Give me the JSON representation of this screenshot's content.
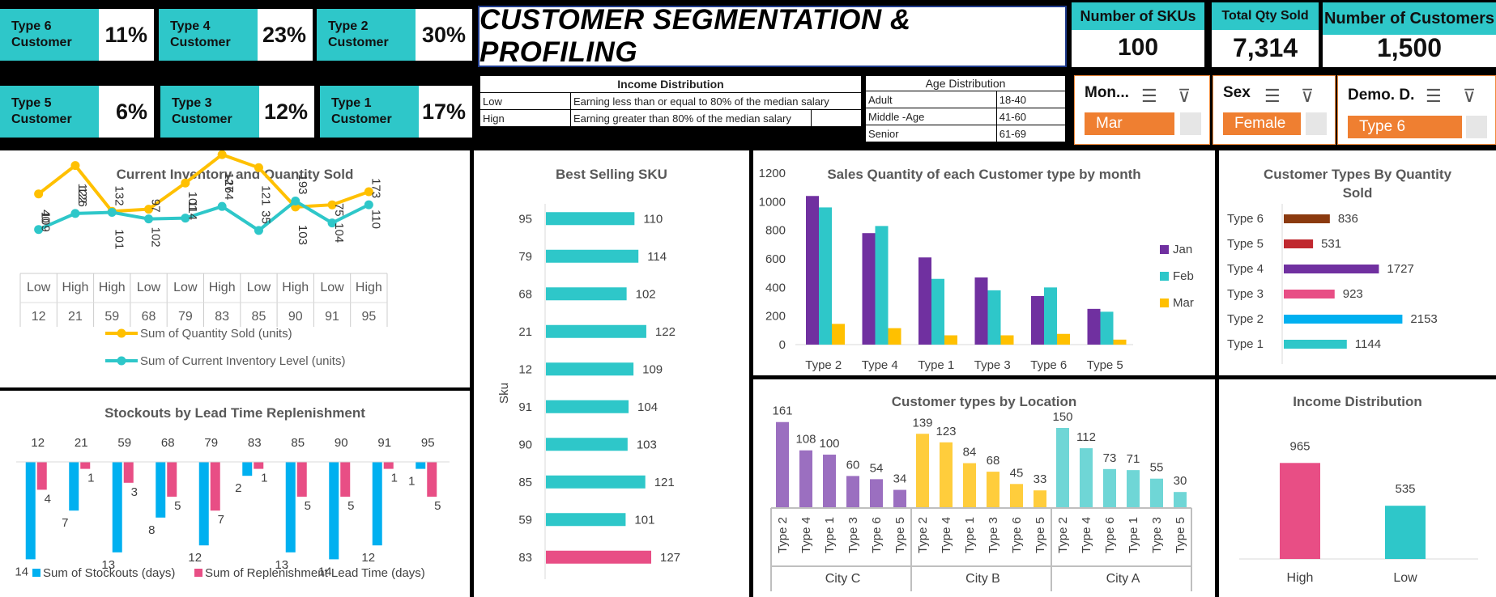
{
  "type_tiles": [
    {
      "label": "Type 6 Customer",
      "pct": "11%"
    },
    {
      "label": "Type 4 Customer",
      "pct": "23%"
    },
    {
      "label": "Type 2 Customer",
      "pct": "30%"
    },
    {
      "label": "Type 5 Customer",
      "pct": "6%"
    },
    {
      "label": "Type 3 Customer",
      "pct": "12%"
    },
    {
      "label": "Type 1 Customer",
      "pct": "17%"
    }
  ],
  "title": "CUSTOMER SEGMENTATION & PROFILING",
  "stats": {
    "skus": {
      "label": "Number of  SKUs",
      "value": "100"
    },
    "qty": {
      "label": "Total Qty  Sold",
      "value": "7,314"
    },
    "customers": {
      "label": "Number of Customers",
      "value": "1,500"
    }
  },
  "income_table": {
    "header": "Income Distribution",
    "rows": [
      {
        "level": "Low",
        "desc": "Earning less than or equal to 80% of the median salary"
      },
      {
        "level": "Hign",
        "desc": "Earning greater than 80% of the median salary"
      }
    ]
  },
  "age_table": {
    "header": "Age Distribution",
    "rows": [
      {
        "group": "Adult",
        "range": "18-40"
      },
      {
        "group": "Middle -Age",
        "range": "41-60"
      },
      {
        "group": "Senior",
        "range": "61-69"
      }
    ]
  },
  "slicers": {
    "month": {
      "title": "Mon...",
      "selected": "Mar"
    },
    "sex": {
      "title": "Sex",
      "selected": "Female"
    },
    "demo": {
      "title": "Demo. D.",
      "selected": "Type 6"
    }
  },
  "colors": {
    "teal": "#2ec7c9",
    "gold": "#ffc000",
    "pink": "#e84e85",
    "blue": "#00b0f0",
    "purple": "#7030a0",
    "orange": "#ef7f31"
  },
  "chart_data": [
    {
      "id": "inventory",
      "type": "line",
      "title": "Current Inventory and Quantity Sold",
      "categories": [
        {
          "income": "Low",
          "sku": "12"
        },
        {
          "income": "High",
          "sku": "21"
        },
        {
          "income": "High",
          "sku": "59"
        },
        {
          "income": "Low",
          "sku": "68"
        },
        {
          "income": "Low",
          "sku": "79"
        },
        {
          "income": "High",
          "sku": "83"
        },
        {
          "income": "Low",
          "sku": "85"
        },
        {
          "income": "High",
          "sku": "90"
        },
        {
          "income": "Low",
          "sku": "91"
        },
        {
          "income": "High",
          "sku": "95"
        }
      ],
      "series": [
        {
          "name": "Sum of Quantity Sold (units)",
          "values": [
            109,
            122,
            101,
            102,
            114,
            127,
            121,
            103,
            104,
            110
          ],
          "color": "#ffc000"
        },
        {
          "name": "Sum of Current Inventory Level (units)",
          "values": [
            40,
            126,
            132,
            97,
            101,
            164,
            35,
            193,
            75,
            173
          ],
          "color": "#2ec7c9"
        }
      ],
      "legend": "bottom"
    },
    {
      "id": "stockouts",
      "type": "bar",
      "title": "Stockouts by Lead Time Replenishment",
      "categories": [
        "12",
        "21",
        "59",
        "68",
        "79",
        "83",
        "85",
        "90",
        "91",
        "95"
      ],
      "series": [
        {
          "name": "Sum of Stockouts (days)",
          "values": [
            14,
            7,
            13,
            8,
            12,
            2,
            13,
            14,
            12,
            1
          ],
          "color": "#00b0f0"
        },
        {
          "name": "Sum of Replenishment Lead Time (days)",
          "values": [
            4,
            1,
            3,
            5,
            7,
            1,
            5,
            5,
            1,
            5
          ],
          "color": "#e84e85"
        }
      ],
      "legend": "bottom"
    },
    {
      "id": "best_sku",
      "type": "bar",
      "orientation": "horizontal",
      "title": "Best Selling SKU",
      "ylabel": "Sku",
      "categories": [
        "95",
        "79",
        "68",
        "21",
        "12",
        "91",
        "90",
        "85",
        "59",
        "83"
      ],
      "values": [
        110,
        114,
        102,
        122,
        109,
        104,
        103,
        121,
        101,
        127
      ],
      "highlight": "83"
    },
    {
      "id": "monthly",
      "type": "bar",
      "title": "Sales Quantity of each Customer type by month",
      "categories": [
        "Type 2",
        "Type 4",
        "Type 1",
        "Type 3",
        "Type 6",
        "Type 5"
      ],
      "series": [
        {
          "name": "Jan",
          "values": [
            1040,
            780,
            610,
            470,
            340,
            250
          ],
          "color": "#7030a0"
        },
        {
          "name": "Feb",
          "values": [
            960,
            830,
            460,
            380,
            400,
            230
          ],
          "color": "#2ec7c9"
        },
        {
          "name": "Mar",
          "values": [
            145,
            115,
            65,
            65,
            75,
            35
          ],
          "color": "#ffc000"
        }
      ],
      "ylim": [
        0,
        1200
      ],
      "yticks": [
        0,
        200,
        400,
        600,
        800,
        1000,
        1200
      ],
      "legend": "right"
    },
    {
      "id": "types_qty",
      "type": "bar",
      "orientation": "horizontal",
      "title": "Customer Types By Quantity Sold",
      "categories": [
        "Type 6",
        "Type 5",
        "Type 4",
        "Type 3",
        "Type 2",
        "Type 1"
      ],
      "values": [
        836,
        531,
        1727,
        923,
        2153,
        1144
      ],
      "colors": [
        "#8b3a0f",
        "#c0282f",
        "#7030a0",
        "#e84e85",
        "#00b0f0",
        "#2ec7c9"
      ]
    },
    {
      "id": "location",
      "type": "bar",
      "title": "Customer types by Location",
      "groups": [
        {
          "name": "City C",
          "color": "#9b6fc0",
          "categories": [
            "Type 2",
            "Type 4",
            "Type 1",
            "Type 3",
            "Type 6",
            "Type 5"
          ],
          "values": [
            161,
            108,
            100,
            60,
            54,
            34
          ]
        },
        {
          "name": "City B",
          "color": "#ffcd3c",
          "categories": [
            "Type 2",
            "Type 4",
            "Type 1",
            "Type 3",
            "Type 6",
            "Type 5"
          ],
          "values": [
            139,
            123,
            84,
            68,
            45,
            33
          ]
        },
        {
          "name": "City A",
          "color": "#6fd6d6",
          "categories": [
            "Type 2",
            "Type 4",
            "Type 6",
            "Type 1",
            "Type 3",
            "Type 5"
          ],
          "values": [
            150,
            112,
            73,
            71,
            55,
            30
          ]
        }
      ]
    },
    {
      "id": "income",
      "type": "bar",
      "title": "Income Distribution",
      "categories": [
        "High",
        "Low"
      ],
      "values": [
        965,
        535
      ],
      "colors": [
        "#e84e85",
        "#2ec7c9"
      ]
    }
  ]
}
